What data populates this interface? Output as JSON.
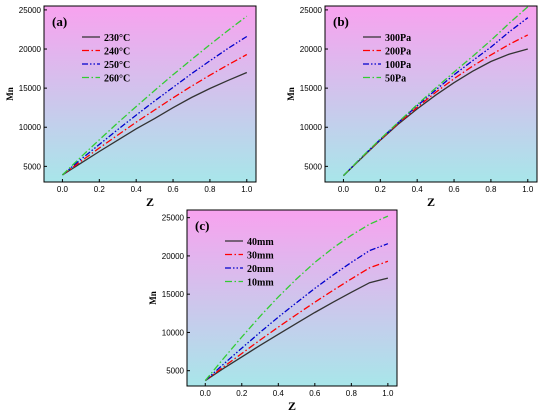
{
  "colors": {
    "bg_top": "#f8a2ef",
    "bg_bottom": "#a8e6ea"
  },
  "chart_data": [
    {
      "type": "line",
      "panel_label": "(a)",
      "xlabel": "Z",
      "ylabel": "Mn",
      "xlim": [
        -0.1,
        1.05
      ],
      "ylim": [
        3000,
        25500
      ],
      "xticks": [
        0.0,
        0.2,
        0.4,
        0.6,
        0.8,
        1.0
      ],
      "yticks": [
        5000,
        10000,
        15000,
        20000,
        25000
      ],
      "x_tick_labels": [
        "0.0",
        "0.2",
        "0.4",
        "0.6",
        "0.8",
        "1.0"
      ],
      "y_tick_labels": [
        "5000",
        "10000",
        "15000",
        "20000",
        "25000"
      ],
      "legend_position": "upper-left",
      "x": [
        0.0,
        0.1,
        0.2,
        0.3,
        0.4,
        0.5,
        0.6,
        0.7,
        0.8,
        0.9,
        1.0
      ],
      "series": [
        {
          "name": "230°C",
          "color": "#333333",
          "dash": "solid",
          "values": [
            3900,
            5400,
            6900,
            8350,
            9800,
            11100,
            12500,
            13800,
            14950,
            16000,
            17000
          ]
        },
        {
          "name": "240°C",
          "color": "#ff0000",
          "dash": "dashdot",
          "values": [
            3900,
            5650,
            7350,
            9000,
            10650,
            12200,
            13750,
            15250,
            16650,
            18000,
            19300
          ]
        },
        {
          "name": "250°C",
          "color": "#0000cc",
          "dash": "dashdotdot",
          "values": [
            3900,
            5900,
            7800,
            9700,
            11550,
            13350,
            15100,
            16850,
            18500,
            20100,
            21600
          ]
        },
        {
          "name": "260°C",
          "color": "#33cc33",
          "dash": "dashdot",
          "values": [
            3900,
            6200,
            8400,
            10550,
            12650,
            14700,
            16700,
            18650,
            20550,
            22400,
            24200
          ]
        }
      ]
    },
    {
      "type": "line",
      "panel_label": "(b)",
      "xlabel": "Z",
      "ylabel": "Mn",
      "xlim": [
        -0.1,
        1.05
      ],
      "ylim": [
        3000,
        25500
      ],
      "xticks": [
        0.0,
        0.2,
        0.4,
        0.6,
        0.8,
        1.0
      ],
      "yticks": [
        5000,
        10000,
        15000,
        20000,
        25000
      ],
      "x_tick_labels": [
        "0.0",
        "0.2",
        "0.4",
        "0.6",
        "0.8",
        "1.0"
      ],
      "y_tick_labels": [
        "5000",
        "10000",
        "15000",
        "20000",
        "25000"
      ],
      "legend_position": "upper-left",
      "x": [
        0.0,
        0.1,
        0.2,
        0.3,
        0.4,
        0.5,
        0.6,
        0.7,
        0.8,
        0.9,
        1.0
      ],
      "series": [
        {
          "name": "300Pa",
          "color": "#333333",
          "dash": "solid",
          "values": [
            3800,
            6100,
            8350,
            10450,
            12350,
            14100,
            15700,
            17150,
            18400,
            19350,
            20000
          ]
        },
        {
          "name": "200Pa",
          "color": "#ff0000",
          "dash": "dashdot",
          "values": [
            3800,
            6150,
            8400,
            10550,
            12550,
            14450,
            16200,
            17800,
            19250,
            20600,
            21800
          ]
        },
        {
          "name": "100Pa",
          "color": "#0000cc",
          "dash": "dashdotdot",
          "values": [
            3800,
            6200,
            8450,
            10650,
            12750,
            14750,
            16700,
            18500,
            20250,
            22200,
            24000
          ]
        },
        {
          "name": "50Pa",
          "color": "#33cc33",
          "dash": "dashdot",
          "values": [
            3800,
            6200,
            8500,
            10700,
            12900,
            15000,
            17050,
            19050,
            21100,
            23300,
            25400
          ]
        }
      ]
    },
    {
      "type": "line",
      "panel_label": "(c)",
      "xlabel": "Z",
      "ylabel": "Mn",
      "xlim": [
        -0.1,
        1.05
      ],
      "ylim": [
        3000,
        26000
      ],
      "xticks": [
        0.0,
        0.2,
        0.4,
        0.6,
        0.8,
        1.0
      ],
      "yticks": [
        5000,
        10000,
        15000,
        20000,
        25000
      ],
      "x_tick_labels": [
        "0.0",
        "0.2",
        "0.4",
        "0.6",
        "0.8",
        "1.0"
      ],
      "y_tick_labels": [
        "5000",
        "10000",
        "15000",
        "20000",
        "25000"
      ],
      "legend_position": "upper-left",
      "x": [
        0.0,
        0.1,
        0.2,
        0.3,
        0.4,
        0.5,
        0.6,
        0.7,
        0.8,
        0.9,
        1.0
      ],
      "series": [
        {
          "name": "40mm",
          "color": "#333333",
          "dash": "solid",
          "values": [
            3700,
            5300,
            6800,
            8300,
            9750,
            11200,
            12600,
            13950,
            15250,
            16500,
            17100
          ]
        },
        {
          "name": "30mm",
          "color": "#ff0000",
          "dash": "dashdot",
          "values": [
            3700,
            5500,
            7250,
            9000,
            10700,
            12350,
            13950,
            15500,
            17000,
            18450,
            19300
          ]
        },
        {
          "name": "20mm",
          "color": "#0000cc",
          "dash": "dashdotdot",
          "values": [
            3700,
            5850,
            7950,
            10000,
            12000,
            13900,
            15750,
            17500,
            19150,
            20700,
            21600
          ]
        },
        {
          "name": "10mm",
          "color": "#33cc33",
          "dash": "dashdot",
          "values": [
            3700,
            6600,
            9400,
            12100,
            14650,
            17000,
            19150,
            21050,
            22700,
            24150,
            25200
          ]
        }
      ]
    }
  ]
}
